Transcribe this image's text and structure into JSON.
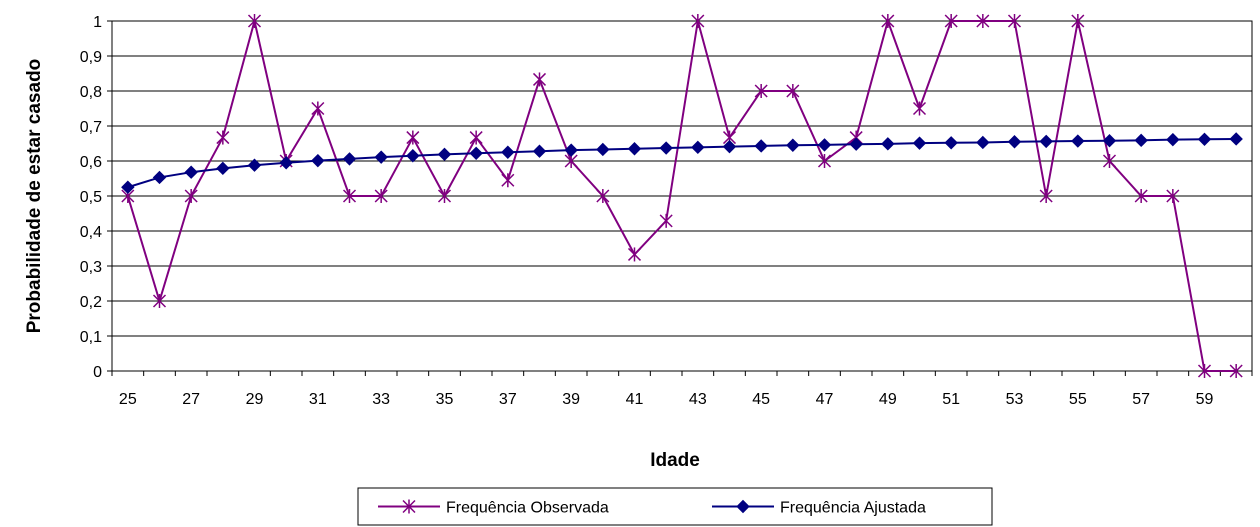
{
  "chart_data": {
    "type": "line",
    "title": "",
    "xlabel": "Idade",
    "ylabel": "Probabilidade de estar casado",
    "x": [
      25,
      26,
      27,
      28,
      29,
      30,
      31,
      32,
      33,
      34,
      35,
      36,
      37,
      38,
      39,
      40,
      41,
      42,
      43,
      44,
      45,
      46,
      47,
      48,
      49,
      50,
      51,
      52,
      53,
      54,
      55,
      56,
      57,
      58,
      59,
      60
    ],
    "x_tick_labels": [
      "25",
      "27",
      "29",
      "31",
      "33",
      "35",
      "37",
      "39",
      "41",
      "43",
      "45",
      "47",
      "49",
      "51",
      "53",
      "55",
      "57",
      "59"
    ],
    "y_tick_labels": [
      "0",
      "0,1",
      "0,2",
      "0,3",
      "0,4",
      "0,5",
      "0,6",
      "0,7",
      "0,8",
      "0,9",
      "1"
    ],
    "ylim": [
      0,
      1
    ],
    "grid": true,
    "legend_position": "bottom",
    "series": [
      {
        "name": "Frequência Observada",
        "color": "#800080",
        "marker": "star",
        "values": [
          0.5,
          0.2,
          0.5,
          0.667,
          1,
          0.6,
          0.75,
          0.5,
          0.5,
          0.667,
          0.5,
          0.667,
          0.545,
          0.833,
          0.6,
          0.5,
          0.333,
          0.429,
          1,
          0.667,
          0.8,
          0.8,
          0.6,
          0.667,
          1,
          0.75,
          1,
          1,
          1,
          0.5,
          1,
          0.6,
          0.5,
          0.5,
          0,
          0
        ]
      },
      {
        "name": "Frequência Ajustada",
        "color": "#000080",
        "marker": "diamond",
        "values": [
          0.525,
          0.553,
          0.568,
          0.579,
          0.588,
          0.595,
          0.601,
          0.606,
          0.611,
          0.615,
          0.619,
          0.622,
          0.625,
          0.628,
          0.631,
          0.633,
          0.635,
          0.637,
          0.639,
          0.641,
          0.643,
          0.645,
          0.646,
          0.648,
          0.649,
          0.651,
          0.652,
          0.653,
          0.655,
          0.656,
          0.657,
          0.658,
          0.659,
          0.661,
          0.662,
          0.663
        ]
      }
    ]
  }
}
